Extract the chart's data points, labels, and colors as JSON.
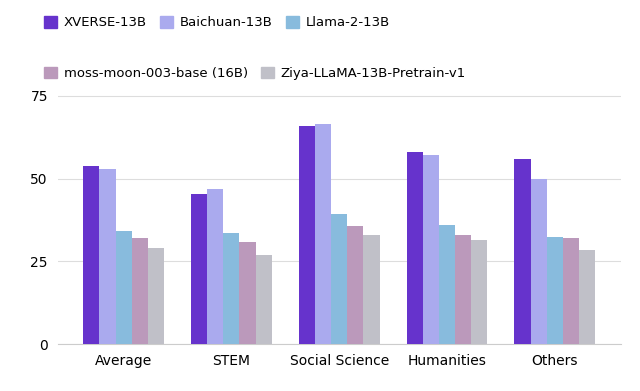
{
  "categories": [
    "Average",
    "STEM",
    "Social Science",
    "Humanities",
    "Others"
  ],
  "series": [
    {
      "name": "XVERSE-13B",
      "color": "#6633cc",
      "values": [
        53.7,
        45.3,
        66.0,
        58.0,
        56.0
      ]
    },
    {
      "name": "Baichuan-13B",
      "color": "#aaaaee",
      "values": [
        52.8,
        46.8,
        66.5,
        57.3,
        49.8
      ]
    },
    {
      "name": "Llama-2-13B",
      "color": "#88bbdd",
      "values": [
        34.3,
        33.7,
        39.2,
        36.0,
        32.5
      ]
    },
    {
      "name": "moss-moon-003-base (16B)",
      "color": "#bb99bb",
      "values": [
        32.1,
        30.8,
        35.8,
        33.0,
        32.0
      ]
    },
    {
      "name": "Ziya-LLaMA-13B-Pretrain-v1",
      "color": "#c0c0c8",
      "values": [
        29.0,
        27.0,
        33.0,
        31.5,
        28.5
      ]
    }
  ],
  "ylim": [
    0,
    78
  ],
  "yticks": [
    0,
    25,
    50,
    75
  ],
  "background_color": "#ffffff",
  "grid_color": "#dddddd",
  "bar_width": 0.15,
  "figsize": [
    6.4,
    3.91
  ],
  "dpi": 100,
  "legend_row1": [
    "XVERSE-13B",
    "Baichuan-13B",
    "Llama-2-13B"
  ],
  "legend_row2": [
    "moss-moon-003-base (16B)",
    "Ziya-LLaMA-13B-Pretrain-v1"
  ]
}
